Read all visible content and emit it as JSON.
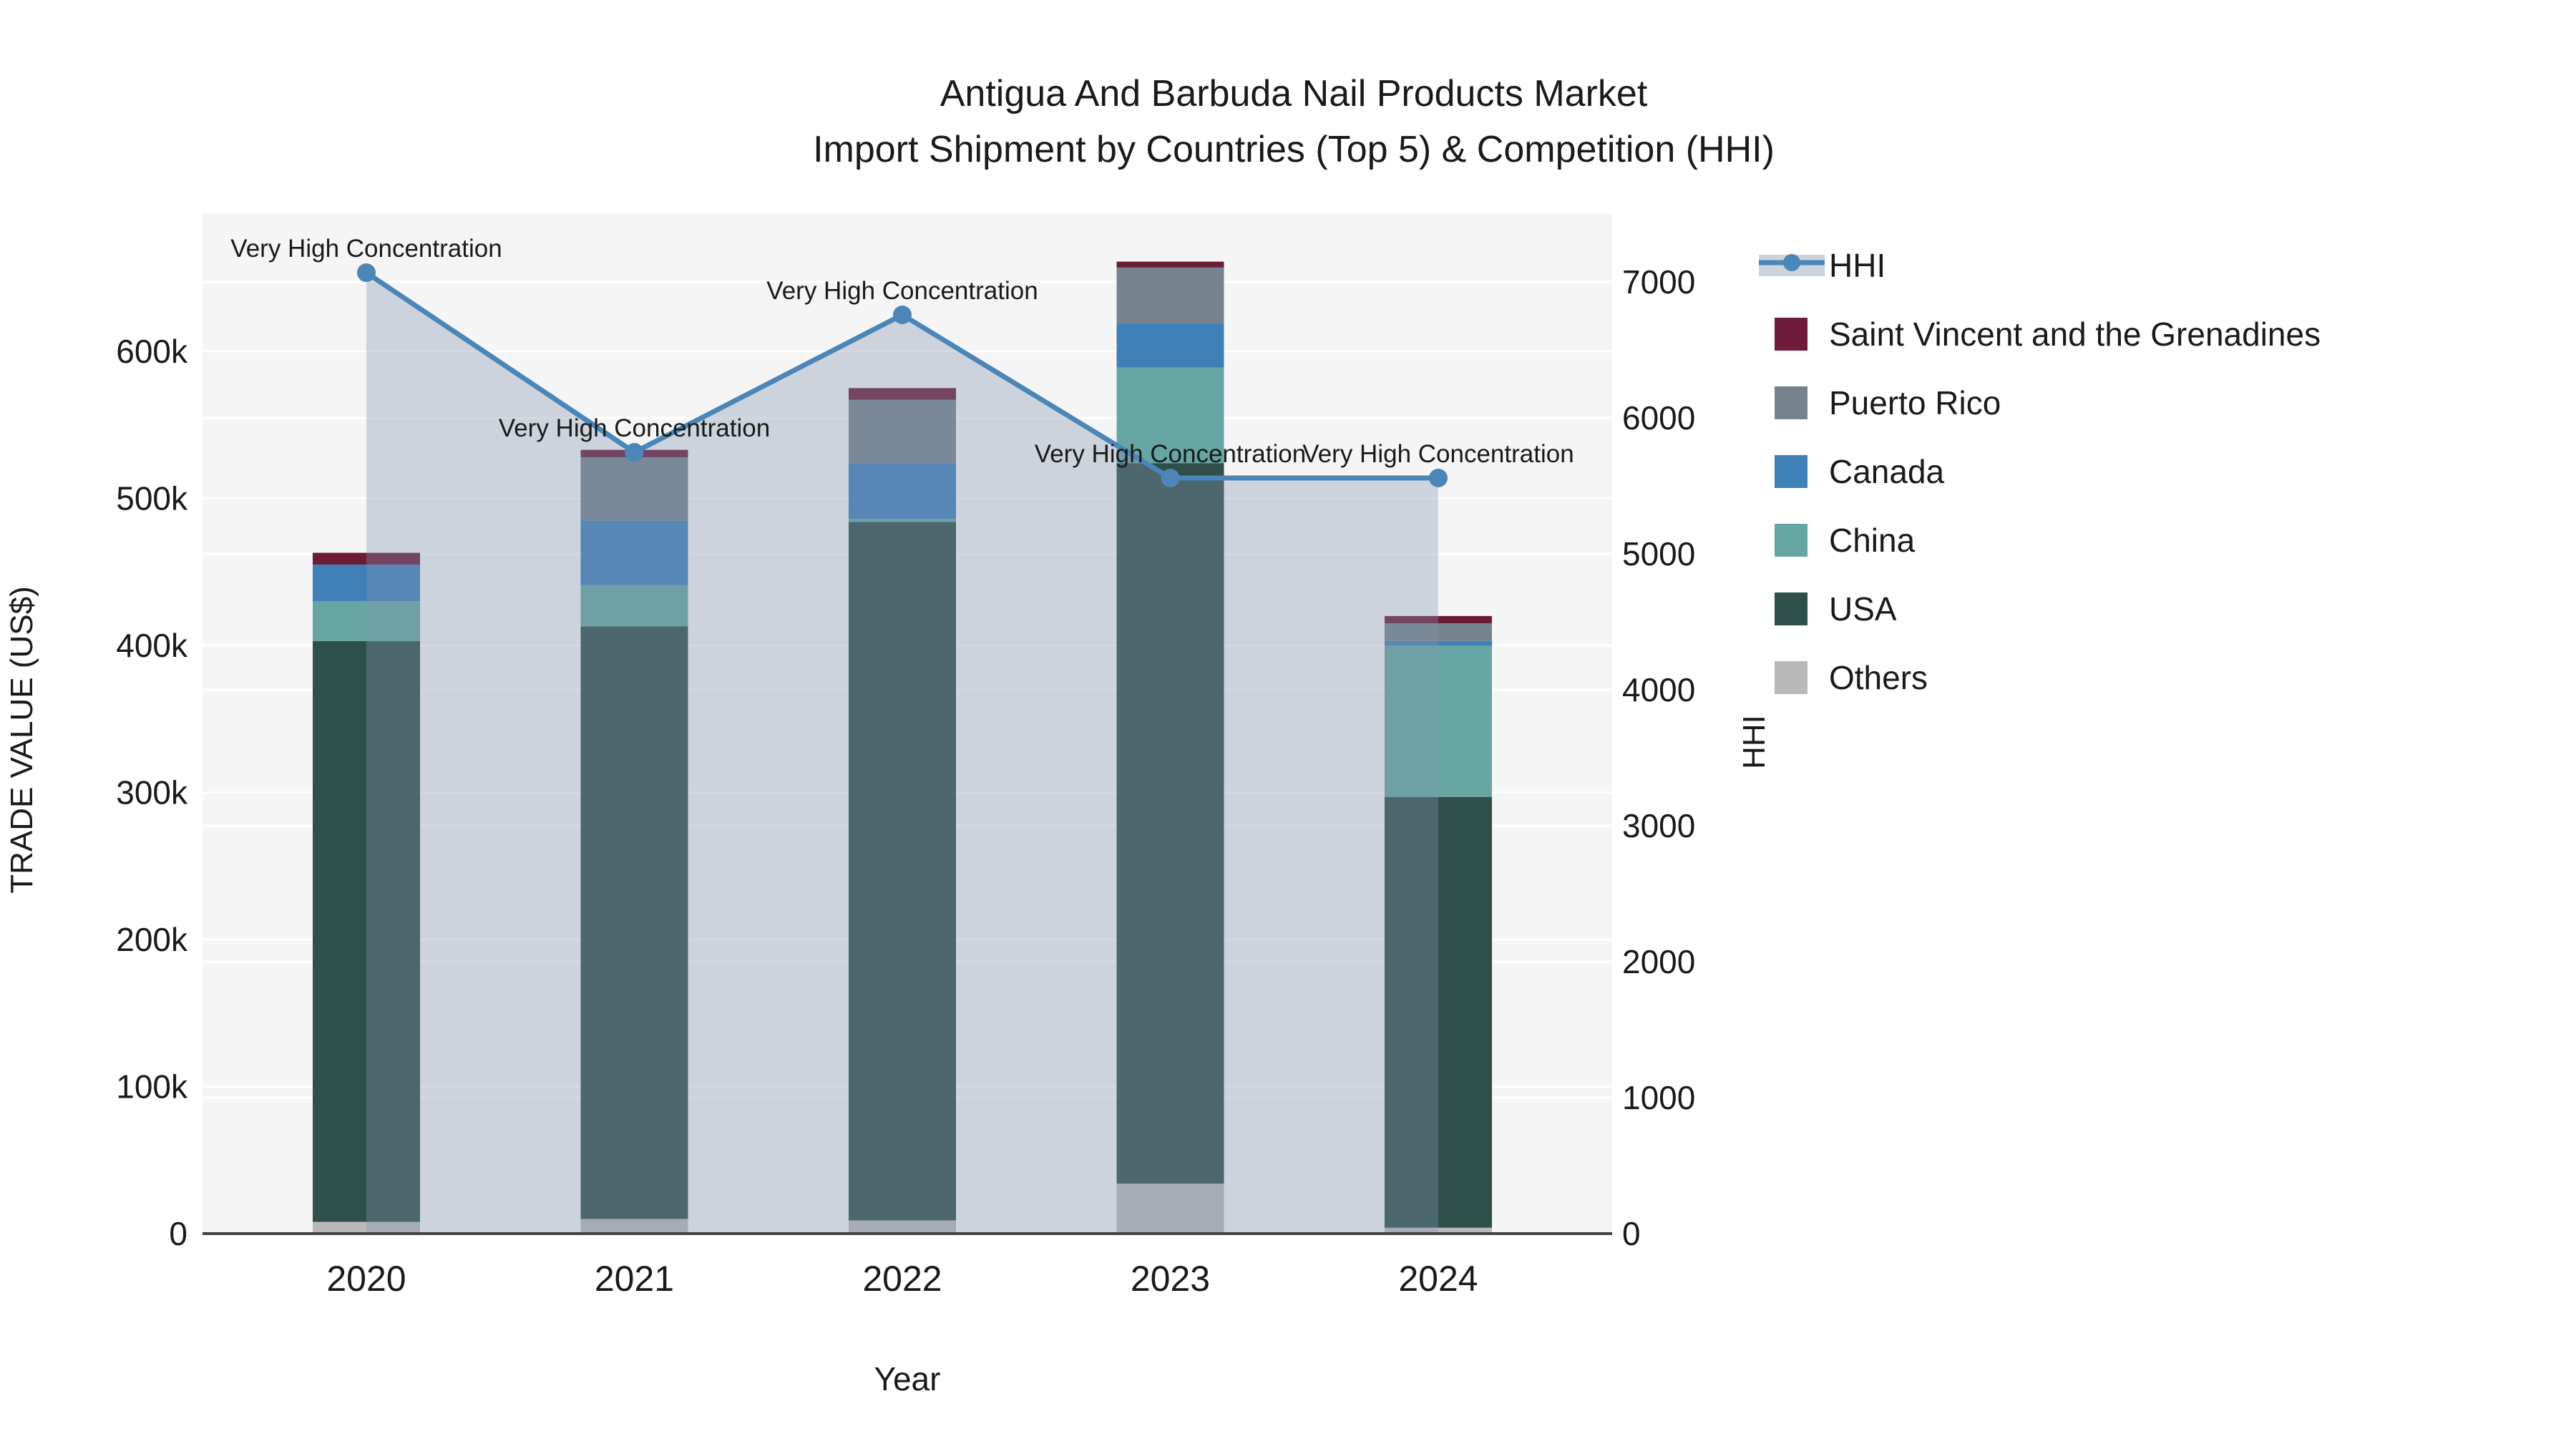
{
  "title": {
    "line1": "Antigua And Barbuda Nail Products Market",
    "line2": "Import Shipment by Countries (Top 5) & Competition (HHI)"
  },
  "annotation_label": "Very High Concentration",
  "colors": {
    "plot_background": "#f5f5f5",
    "gridline": "#ffffff",
    "axis_line": "#444444",
    "hhi_line": "#4a86b8",
    "hhi_fill": "rgba(128,148,174,0.35)",
    "hhi_legend_band": "#ccd3dc",
    "others": "#b9b9b9",
    "usa": "#2f4f4b",
    "china": "#66a5a3",
    "canada": "#4080b8",
    "puerto_rico": "#76838f",
    "saint_vincent": "#6d1b38"
  },
  "chart_data": {
    "type": "combo_stacked_bar_line",
    "title": "Antigua And Barbuda Nail Products Market — Import Shipment by Countries (Top 5) & Competition (HHI)",
    "categories": [
      "2020",
      "2021",
      "2022",
      "2023",
      "2024"
    ],
    "bar_series": [
      {
        "name": "Others",
        "color": "#b9b9b9",
        "values": [
          8000,
          10000,
          9000,
          34000,
          4000
        ]
      },
      {
        "name": "USA",
        "color": "#2f4f4b",
        "values": [
          395000,
          403000,
          475000,
          490000,
          293000
        ]
      },
      {
        "name": "China",
        "color": "#66a5a3",
        "values": [
          27000,
          28000,
          2000,
          65000,
          103000
        ]
      },
      {
        "name": "Canada",
        "color": "#4080b8",
        "values": [
          25000,
          44000,
          38000,
          30000,
          3000
        ]
      },
      {
        "name": "Puerto Rico",
        "color": "#76838f",
        "values": [
          0,
          43000,
          43000,
          38000,
          12000
        ]
      },
      {
        "name": "Saint Vincent and the Grenadines",
        "color": "#6d1b38",
        "values": [
          8000,
          5000,
          8000,
          4000,
          5000
        ]
      }
    ],
    "line_series": {
      "name": "HHI",
      "color": "#4a86b8",
      "values": [
        7068,
        5747,
        6758,
        5558,
        5558
      ],
      "point_annotations": [
        "Very High Concentration",
        "Very High Concentration",
        "Very High Concentration",
        "Very High Concentration",
        "Very High Concentration"
      ]
    },
    "y_left": {
      "label": "TRADE VALUE (US$)",
      "tick_values": [
        0,
        100000,
        200000,
        300000,
        400000,
        500000,
        600000
      ],
      "tick_labels": [
        "0",
        "100k",
        "200k",
        "300k",
        "400k",
        "500k",
        "600k"
      ],
      "range": [
        0,
        694000
      ]
    },
    "y_right": {
      "label": "HHI",
      "tick_values": [
        0,
        1000,
        2000,
        3000,
        4000,
        5000,
        6000,
        7000
      ],
      "tick_labels": [
        "0",
        "1000",
        "2000",
        "3000",
        "4000",
        "5000",
        "6000",
        "7000"
      ],
      "range": [
        0,
        7505
      ]
    },
    "x": {
      "label": "Year"
    },
    "legend_order": [
      "HHI",
      "Saint Vincent and the Grenadines",
      "Puerto Rico",
      "Canada",
      "China",
      "USA",
      "Others"
    ],
    "legend_position": "right",
    "grid": true
  }
}
